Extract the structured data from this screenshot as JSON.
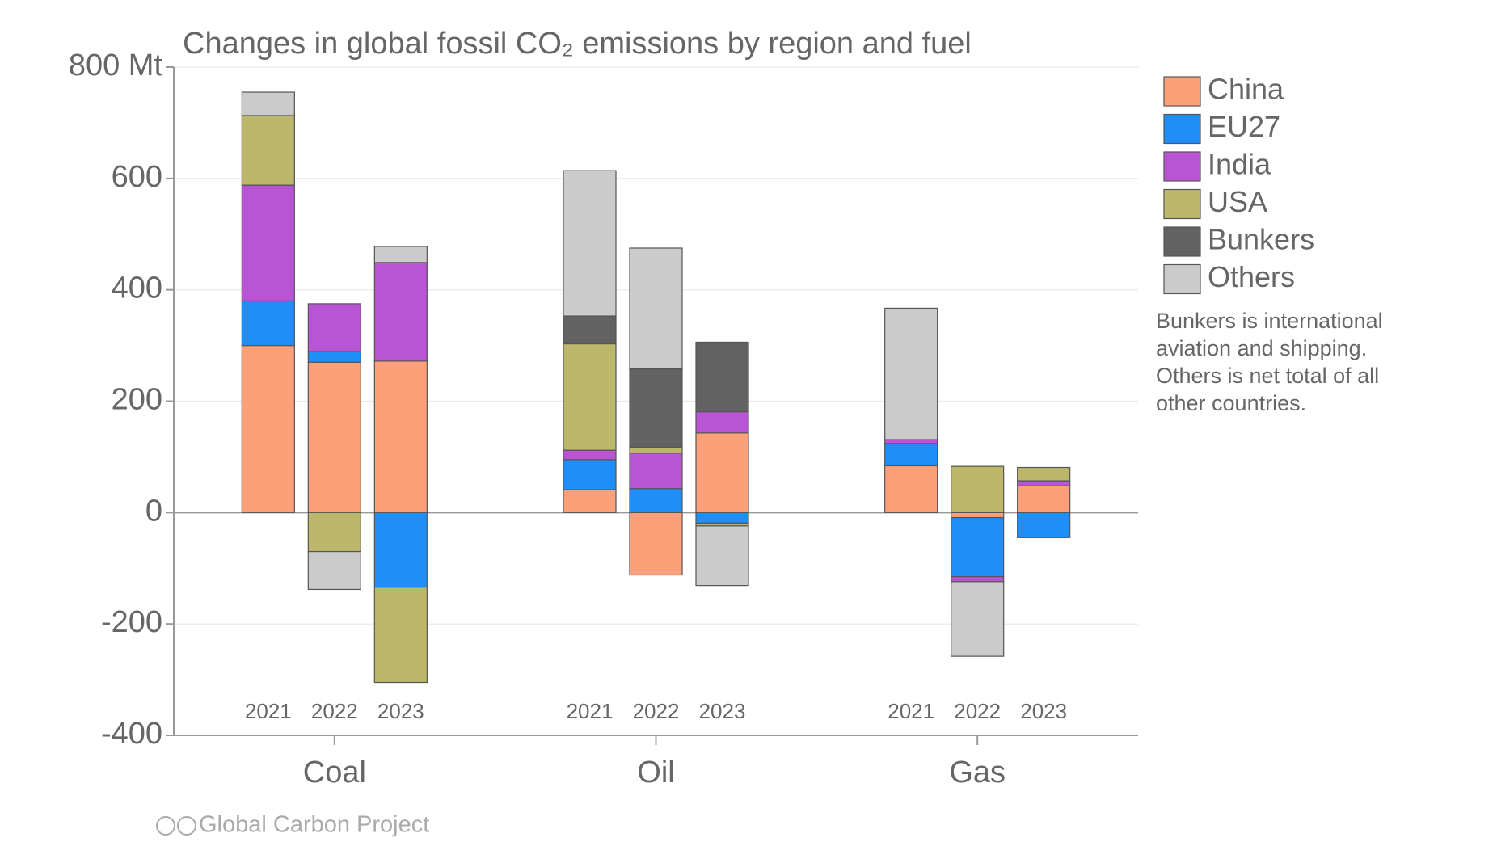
{
  "chart_data": {
    "type": "stacked-bar",
    "title": "Changes in global fossil CO₂ emissions by region and fuel",
    "groups": [
      "Coal",
      "Oil",
      "Gas"
    ],
    "categories": [
      "2021",
      "2022",
      "2023",
      "2021",
      "2022",
      "2023",
      "2021",
      "2022",
      "2023"
    ],
    "series": [
      {
        "name": "China",
        "color": "#fca079",
        "values": [
          300,
          270,
          272,
          41,
          -112,
          143,
          84,
          -9,
          48
        ]
      },
      {
        "name": "EU27",
        "color": "#1f8ef8",
        "values": [
          80,
          19,
          -134,
          54,
          43,
          -19,
          40,
          -106,
          -45
        ]
      },
      {
        "name": "India",
        "color": "#b955d4",
        "values": [
          208,
          86,
          177,
          17,
          64,
          38,
          7,
          -9,
          9
        ]
      },
      {
        "name": "USA",
        "color": "#bdb76b",
        "values": [
          125,
          -70,
          -171,
          191,
          10,
          -5,
          0,
          83,
          24
        ]
      },
      {
        "name": "Bunkers",
        "color": "#626262",
        "values": [
          0,
          0,
          0,
          50,
          141,
          125,
          0,
          0,
          0
        ]
      },
      {
        "name": "Others",
        "color": "#cbcbcb",
        "values": [
          42,
          -68,
          29,
          261,
          217,
          -107,
          236,
          -134,
          0
        ]
      }
    ],
    "ylim": [
      -400,
      800
    ],
    "yticks": [
      -400,
      -200,
      0,
      200,
      400,
      600,
      {
        "value": 800,
        "label": "800 Mt"
      }
    ],
    "grid": true,
    "legend": "right",
    "note": [
      "Bunkers is international",
      "aviation and shipping.",
      "Others is net total of all",
      "other countries."
    ],
    "source": "Global Carbon Project"
  }
}
